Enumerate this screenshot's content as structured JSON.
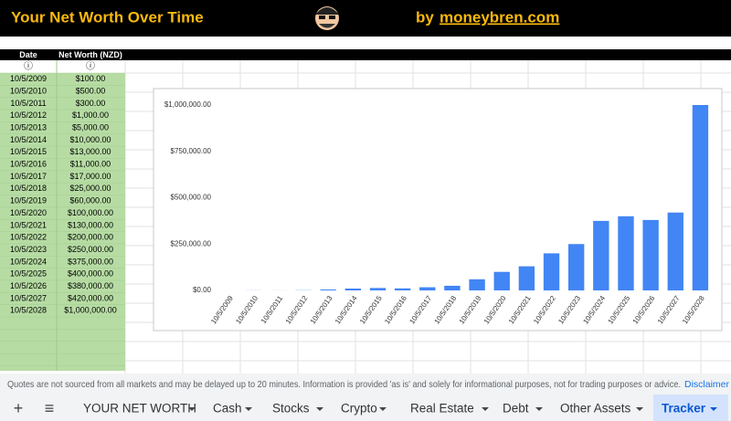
{
  "header": {
    "title": "Your Net Worth Over Time",
    "by": "by",
    "site": "moneybren.com"
  },
  "table": {
    "headers": [
      "Date",
      "Net Worth (NZD)"
    ],
    "info_icons": [
      "ⓘ",
      "ⓘ"
    ],
    "rows": [
      [
        "10/5/2009",
        "$100.00"
      ],
      [
        "10/5/2010",
        "$500.00"
      ],
      [
        "10/5/2011",
        "$300.00"
      ],
      [
        "10/5/2012",
        "$1,000.00"
      ],
      [
        "10/5/2013",
        "$5,000.00"
      ],
      [
        "10/5/2014",
        "$10,000.00"
      ],
      [
        "10/5/2015",
        "$13,000.00"
      ],
      [
        "10/5/2016",
        "$11,000.00"
      ],
      [
        "10/5/2017",
        "$17,000.00"
      ],
      [
        "10/5/2018",
        "$25,000.00"
      ],
      [
        "10/5/2019",
        "$60,000.00"
      ],
      [
        "10/5/2020",
        "$100,000.00"
      ],
      [
        "10/5/2021",
        "$130,000.00"
      ],
      [
        "10/5/2022",
        "$200,000.00"
      ],
      [
        "10/5/2023",
        "$250,000.00"
      ],
      [
        "10/5/2024",
        "$375,000.00"
      ],
      [
        "10/5/2025",
        "$400,000.00"
      ],
      [
        "10/5/2026",
        "$380,000.00"
      ],
      [
        "10/5/2027",
        "$420,000.00"
      ],
      [
        "10/5/2028",
        "$1,000,000.00"
      ]
    ]
  },
  "chart_data": {
    "type": "bar",
    "categories": [
      "10/5/2009",
      "10/5/2010",
      "10/5/2011",
      "10/5/2012",
      "10/5/2013",
      "10/5/2014",
      "10/5/2015",
      "10/5/2016",
      "10/5/2017",
      "10/5/2018",
      "10/5/2019",
      "10/5/2020",
      "10/5/2021",
      "10/5/2022",
      "10/5/2023",
      "10/5/2024",
      "10/5/2025",
      "10/5/2026",
      "10/5/2027",
      "10/5/2028"
    ],
    "values": [
      100,
      500,
      300,
      1000,
      5000,
      10000,
      13000,
      11000,
      17000,
      25000,
      60000,
      100000,
      130000,
      200000,
      250000,
      375000,
      400000,
      380000,
      420000,
      1000000
    ],
    "color": "#4285f4",
    "ylim": [
      0,
      1000000
    ],
    "yticks": [
      {
        "value": 0,
        "label": "$0.00"
      },
      {
        "value": 250000,
        "label": "$250,000.00"
      },
      {
        "value": 500000,
        "label": "$500,000.00"
      },
      {
        "value": 750000,
        "label": "$750,000.00"
      },
      {
        "value": 1000000,
        "label": "$1,000,000.00"
      }
    ],
    "grid": false
  },
  "footer": {
    "notice": "Quotes are not sourced from all markets and may be delayed up to 20 minutes. Information is provided 'as is' and solely for informational purposes, not for trading purposes or advice.",
    "link": "Disclaimer"
  },
  "tabs": {
    "add": "+",
    "menu": "≡",
    "sheets": [
      "YOUR NET WORTH",
      "Cash",
      "Stocks",
      "Crypto",
      "Real Estate",
      "Debt",
      "Other Assets",
      "Tracker"
    ]
  }
}
